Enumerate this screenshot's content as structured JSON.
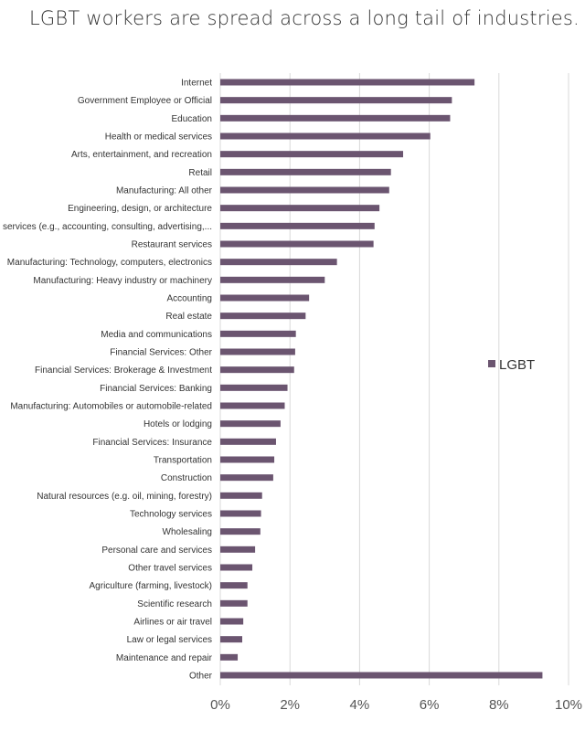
{
  "chart_data": {
    "type": "bar",
    "orientation": "horizontal",
    "title": "LGBT workers are spread across a long tail of industries.",
    "categories": [
      "Internet",
      "Government Employee or Official",
      "Education",
      "Health or medical services",
      "Arts, entertainment, and recreation",
      "Retail",
      "Manufacturing: All other",
      "Engineering, design, or architecture",
      "Business services (e.g., accounting, consulting, advertising,...",
      "Restaurant services",
      "Manufacturing: Technology, computers, electronics",
      "Manufacturing: Heavy industry or machinery",
      "Accounting",
      "Real estate",
      "Media and communications",
      "Financial Services: Other",
      "Financial Services: Brokerage & Investment",
      "Financial Services: Banking",
      "Manufacturing: Automobiles or automobile-related",
      "Hotels or lodging",
      "Financial Services: Insurance",
      "Transportation",
      "Construction",
      "Natural resources (e.g. oil, mining, forestry)",
      "Technology services",
      "Wholesaling",
      "Personal care and services",
      "Other travel services",
      "Agriculture (farming, livestock)",
      "Scientific research",
      "Airlines or air travel",
      "Law or legal services",
      "Maintenance and repair",
      "Other"
    ],
    "series": [
      {
        "name": "LGBT",
        "color": "#6b5570",
        "values": [
          7.3,
          6.65,
          6.6,
          6.03,
          5.25,
          4.9,
          4.85,
          4.57,
          4.43,
          4.4,
          3.35,
          3.0,
          2.55,
          2.45,
          2.17,
          2.15,
          2.12,
          1.93,
          1.85,
          1.73,
          1.6,
          1.55,
          1.52,
          1.2,
          1.17,
          1.15,
          1.0,
          0.92,
          0.78,
          0.78,
          0.66,
          0.63,
          0.5,
          9.25
        ]
      }
    ],
    "x_ticks": [
      "0%",
      "2%",
      "4%",
      "6%",
      "8%",
      "10%"
    ],
    "xlim": [
      0,
      10
    ],
    "x_unit": "%",
    "grid": true,
    "legend_placement": "right"
  }
}
